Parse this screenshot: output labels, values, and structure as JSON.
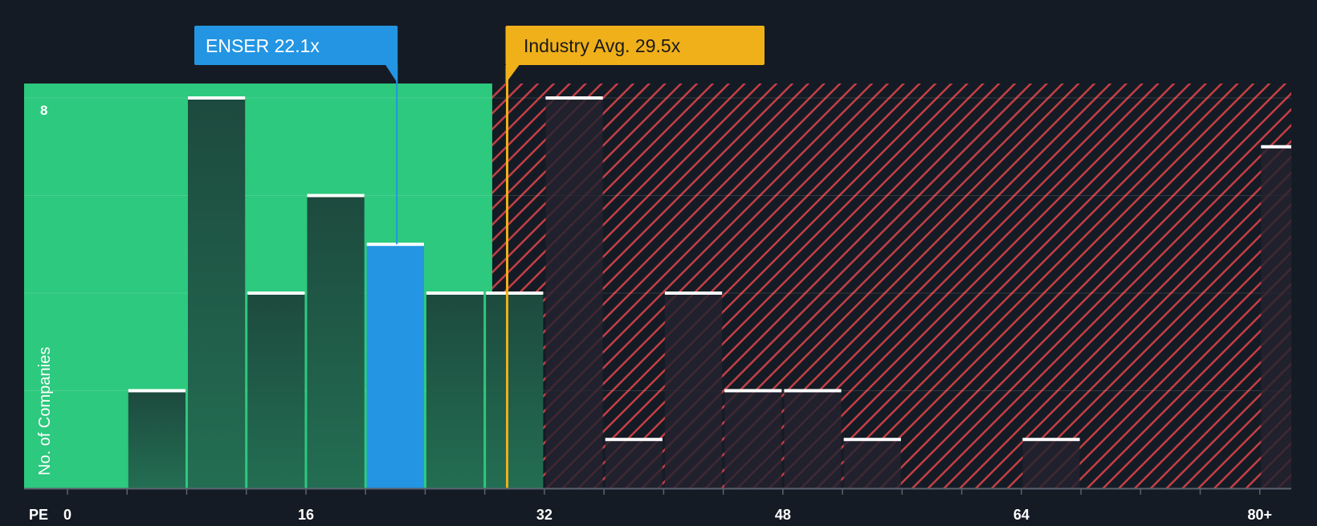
{
  "chart_data": {
    "type": "bar",
    "title": "",
    "xlabel": "PE",
    "ylabel": "No. of Companies",
    "bin_width": 4,
    "bins": [
      {
        "start": 0,
        "value": 0
      },
      {
        "start": 4,
        "value": 2
      },
      {
        "start": 8,
        "value": 8
      },
      {
        "start": 12,
        "value": 4
      },
      {
        "start": 16,
        "value": 6
      },
      {
        "start": 20,
        "value": 5,
        "highlight": true
      },
      {
        "start": 24,
        "value": 4
      },
      {
        "start": 28,
        "value": 4
      },
      {
        "start": 32,
        "value": 8
      },
      {
        "start": 36,
        "value": 1
      },
      {
        "start": 40,
        "value": 4
      },
      {
        "start": 44,
        "value": 2
      },
      {
        "start": 48,
        "value": 2
      },
      {
        "start": 52,
        "value": 1
      },
      {
        "start": 56,
        "value": 0
      },
      {
        "start": 60,
        "value": 0
      },
      {
        "start": 64,
        "value": 1
      },
      {
        "start": 68,
        "value": 0
      },
      {
        "start": 72,
        "value": 0
      },
      {
        "start": 76,
        "value": 0
      },
      {
        "start": 80,
        "value": 7
      }
    ],
    "xlim": [
      0,
      82
    ],
    "ylim": [
      0,
      8
    ],
    "x_ticks": [
      {
        "value": 0,
        "label": "0"
      },
      {
        "value": 16,
        "label": "16"
      },
      {
        "value": 32,
        "label": "32"
      },
      {
        "value": 48,
        "label": "48"
      },
      {
        "value": 64,
        "label": "64"
      },
      {
        "value": 80,
        "label": "80+"
      }
    ],
    "y_tick_label": {
      "value": 8,
      "label": "8"
    },
    "fair_zone_end": 28.5,
    "company": {
      "name": "ENSER",
      "value": 22.1,
      "label": "ENSER 22.1x"
    },
    "industry": {
      "name": "Industry Avg.",
      "value": 29.5,
      "label": "Industry Avg. 29.5x"
    }
  },
  "colors": {
    "background": "#151b24",
    "fair_zone": "#2dc97e",
    "fair_bar": "#1e4b3f",
    "expensive_stripe": "#c43f45",
    "expensive_bar": "#232330",
    "company": "#2395e3",
    "industry": "#f0b01a",
    "bar_cap": "#ffffff"
  }
}
